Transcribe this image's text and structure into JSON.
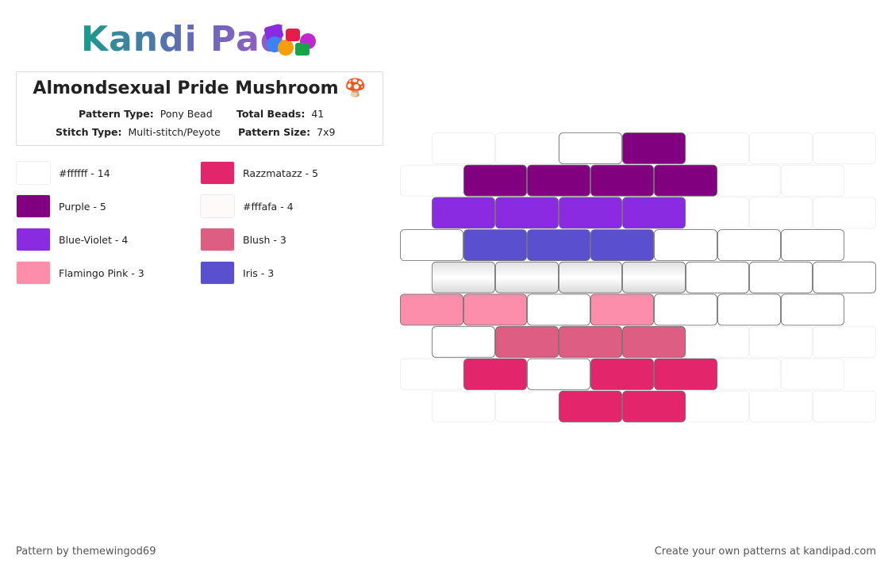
{
  "header": {
    "logo": "Kandi Pad"
  },
  "pattern": {
    "title": "Almondsexual Pride Mushroom 🍄",
    "info": [
      {
        "label": "Pattern Type:",
        "value": "Pony Bead"
      },
      {
        "label": "Total Beads:",
        "value": "41"
      },
      {
        "label": "Stitch Type:",
        "value": "Multi-stitch/Peyote"
      },
      {
        "label": "Pattern Size:",
        "value": "7x9"
      }
    ]
  },
  "legend": [
    {
      "label": "#ffffff - 14",
      "color": "#ffffff"
    },
    {
      "label": "Purple - 5",
      "color": "#800080"
    },
    {
      "label": "Blue-Violet - 4",
      "color": "#8a2be2"
    },
    {
      "label": "Flamingo Pink - 3",
      "color": "#fc8eac"
    },
    {
      "label": "Razzmatazz - 5",
      "color": "#e3256b"
    },
    {
      "label": "#fffafa - 4",
      "color": "#fffafa"
    },
    {
      "label": "Blush - 3",
      "color": "#de5d83"
    },
    {
      "label": "Iris - 3",
      "color": "#5a4fcf"
    }
  ],
  "grid": [
    [
      null,
      null,
      "#ffffff",
      "#800080",
      null,
      null,
      null
    ],
    [
      null,
      "#800080",
      "#800080",
      "#800080",
      "#800080",
      null,
      null
    ],
    [
      "#8a2be2",
      "#8a2be2",
      "#8a2be2",
      "#8a2be2",
      null,
      null,
      null
    ],
    [
      "#ffffff",
      "#5a4fcf",
      "#5a4fcf",
      "#5a4fcf",
      "#ffffff",
      "#ffffff",
      "#ffffff"
    ],
    [
      "#fffafa",
      "#fffafa",
      "#fffafa",
      "#fffafa",
      "#ffffff",
      "#ffffff",
      "#ffffff"
    ],
    [
      "#fc8eac",
      "#fc8eac",
      "#ffffff",
      "#fc8eac",
      "#ffffff",
      "#ffffff",
      "#ffffff"
    ],
    [
      "#ffffff",
      "#de5d83",
      "#de5d83",
      "#de5d83",
      null,
      null,
      null
    ],
    [
      null,
      "#e3256b",
      "#ffffff",
      "#e3256b",
      "#e3256b",
      null,
      null
    ],
    [
      null,
      null,
      "#e3256b",
      "#e3256b",
      null,
      null,
      null
    ]
  ],
  "footer": {
    "credit": "Pattern by themewingod69",
    "promo": "Create your own patterns at kandipad.com"
  }
}
